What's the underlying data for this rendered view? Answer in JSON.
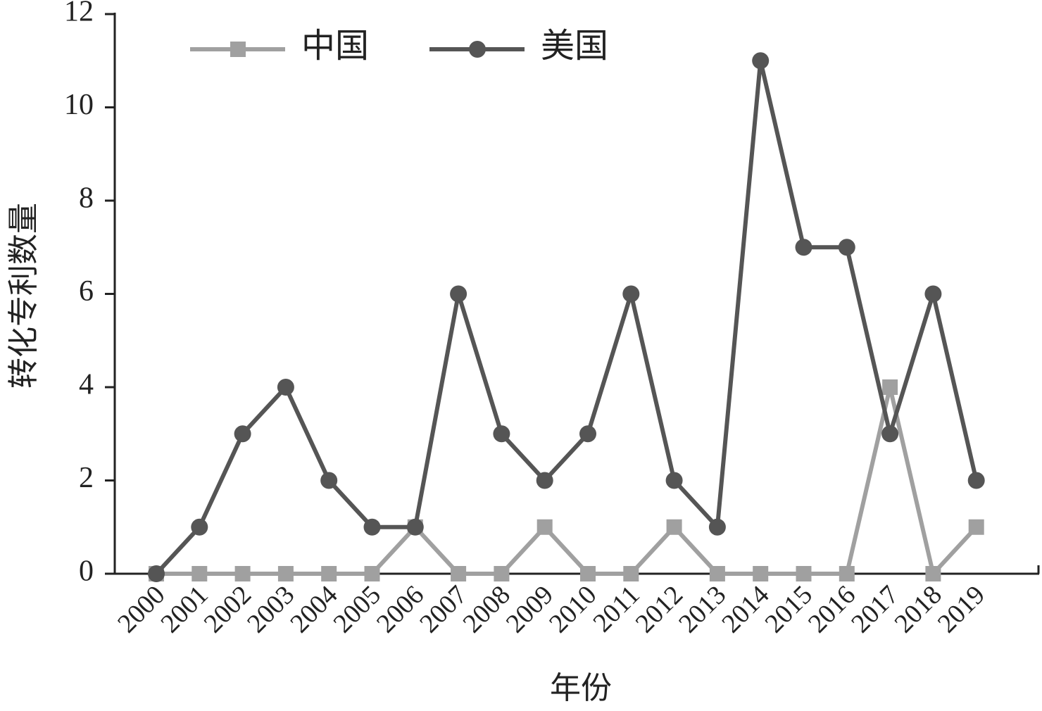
{
  "chart_data": {
    "type": "line",
    "x_label": "年份",
    "y_label": "转化专利数量",
    "categories": [
      "2000",
      "2001",
      "2002",
      "2003",
      "2004",
      "2005",
      "2006",
      "2007",
      "2008",
      "2009",
      "2010",
      "2011",
      "2012",
      "2013",
      "2014",
      "2015",
      "2016",
      "2017",
      "2018",
      "2019"
    ],
    "series": [
      {
        "name": "中国",
        "color": "#a0a0a0",
        "marker": "square",
        "values": [
          0,
          0,
          0,
          0,
          0,
          0,
          1,
          0,
          0,
          1,
          0,
          0,
          1,
          0,
          0,
          0,
          0,
          4,
          0,
          1
        ]
      },
      {
        "name": "美国",
        "color": "#555555",
        "marker": "circle",
        "values": [
          0,
          1,
          3,
          4,
          2,
          1,
          1,
          6,
          3,
          2,
          3,
          6,
          2,
          1,
          11,
          7,
          7,
          3,
          6,
          2
        ]
      }
    ],
    "ylim": [
      0,
      12
    ],
    "yticks": [
      0,
      2,
      4,
      6,
      8,
      10,
      12
    ],
    "legend": "upper left"
  }
}
